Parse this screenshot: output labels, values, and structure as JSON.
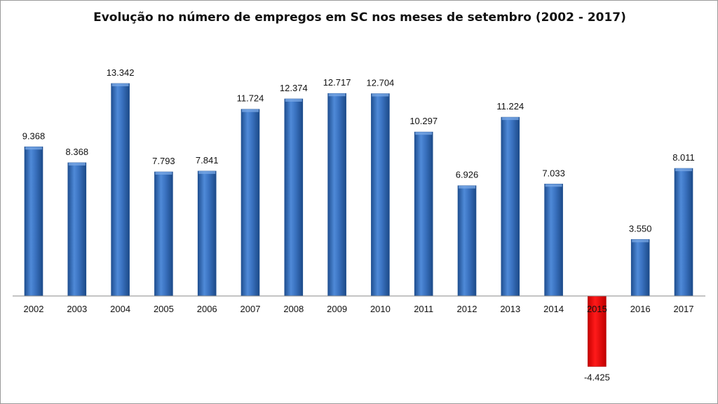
{
  "chart_data": {
    "type": "bar",
    "title": "Evolução no número de empregos em SC nos meses de setembro (2002 - 2017)",
    "categories": [
      "2002",
      "2003",
      "2004",
      "2005",
      "2006",
      "2007",
      "2008",
      "2009",
      "2010",
      "2011",
      "2012",
      "2013",
      "2014",
      "2015",
      "2016",
      "2017"
    ],
    "values": [
      9368,
      8368,
      13342,
      7793,
      7841,
      11724,
      12374,
      12717,
      12704,
      10297,
      6926,
      11224,
      7033,
      -4425,
      3550,
      8011
    ],
    "data_labels": [
      "9.368",
      "8.368",
      "13.342",
      "7.793",
      "7.841",
      "11.724",
      "12.374",
      "12.717",
      "12.704",
      "10.297",
      "6.926",
      "11.224",
      "7.033",
      "-4.425",
      "3.550",
      "8.011"
    ],
    "xlabel": "",
    "ylabel": "",
    "ylim": [
      -5000,
      14000
    ],
    "grid": false,
    "legend": "none",
    "colors": {
      "positive_bar": "#3a72c0",
      "positive_bar_edge": "#1f4f91",
      "negative_bar": "#ee0000",
      "negative_bar_edge": "#a80000",
      "axis": "#888888"
    }
  }
}
